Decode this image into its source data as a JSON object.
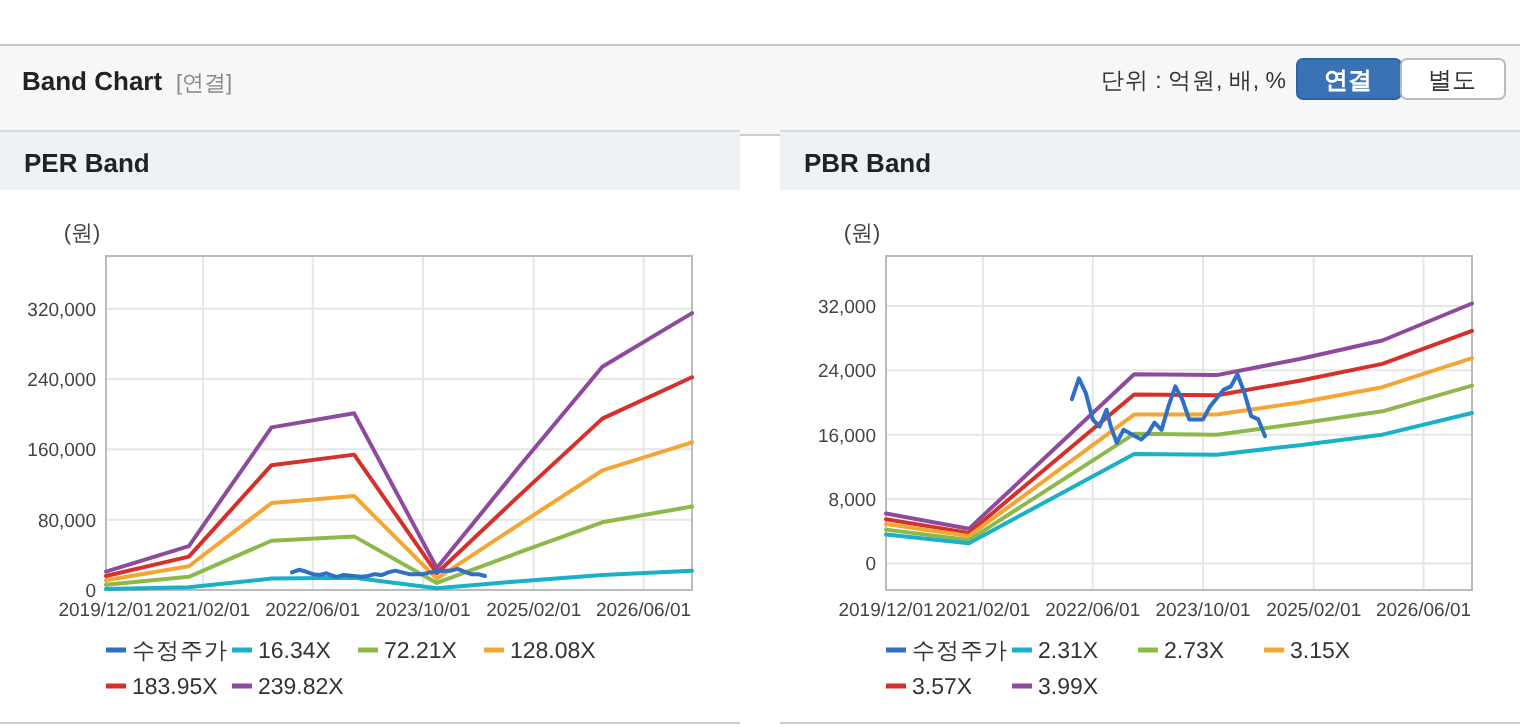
{
  "chart_data": [
    {
      "type": "other",
      "title": "Band Chart",
      "subtitle": "[연결]",
      "annotations": [
        "단위 : 억원, 배, %",
        "연결",
        "별도"
      ]
    },
    {
      "type": "line",
      "title": "PER Band",
      "ylabel": "(원)",
      "xlim": [
        "2019-12-01",
        "2027-01-01"
      ],
      "ylim": [
        0,
        380000
      ],
      "xticks": [
        {
          "value": "2019-12-01",
          "label": "2019/12/01"
        },
        {
          "value": "2021-02-01",
          "label": "2021/02/01"
        },
        {
          "value": "2022-06-01",
          "label": "2022/06/01"
        },
        {
          "value": "2023-10-01",
          "label": "2023/10/01"
        },
        {
          "value": "2025-02-01",
          "label": "2025/02/01"
        },
        {
          "value": "2026-06-01",
          "label": "2026/06/01"
        }
      ],
      "yticks": [
        {
          "value": 0,
          "label": "0"
        },
        {
          "value": 80000,
          "label": "80,000"
        },
        {
          "value": 160000,
          "label": "160,000"
        },
        {
          "value": 240000,
          "label": "240,000"
        },
        {
          "value": 320000,
          "label": "320,000"
        }
      ],
      "grid": true,
      "legend": "bottom",
      "series": [
        {
          "name": "수정주가",
          "color": "#2f6fc4",
          "x": [
            "2022-03-01",
            "2022-04-01",
            "2022-05-01",
            "2022-06-01",
            "2022-07-01",
            "2022-08-01",
            "2022-08-20",
            "2022-09-15",
            "2022-10-15",
            "2023-01-01",
            "2023-02-01",
            "2023-03-01",
            "2023-04-01",
            "2023-05-01",
            "2023-06-01",
            "2023-07-01",
            "2023-08-01",
            "2023-10-01",
            "2023-11-01",
            "2024-01-01",
            "2024-02-01",
            "2024-03-01",
            "2024-04-01",
            "2024-05-01",
            "2024-06-01",
            "2024-07-01"
          ],
          "values": [
            20000,
            23000,
            21000,
            18000,
            17000,
            19000,
            17000,
            15000,
            17000,
            15000,
            16000,
            18000,
            17000,
            20000,
            22000,
            20000,
            18000,
            18000,
            20000,
            22000,
            22000,
            24000,
            21000,
            18000,
            18000,
            16000
          ]
        },
        {
          "name": "16.34X",
          "color": "#1ab0c8",
          "x": [
            "2019-12-01",
            "2020-12-01",
            "2021-12-01",
            "2022-12-01",
            "2023-12-01",
            "2024-12-01",
            "2025-12-01",
            "2027-01-01"
          ],
          "values": [
            1000,
            3000,
            13000,
            14000,
            2000,
            10000,
            17000,
            22000
          ]
        },
        {
          "name": "72.21X",
          "color": "#8db84a",
          "x": [
            "2019-12-01",
            "2020-12-01",
            "2021-12-01",
            "2022-12-01",
            "2023-12-01",
            "2024-12-01",
            "2025-12-01",
            "2027-01-01"
          ],
          "values": [
            6000,
            15000,
            56000,
            61000,
            8000,
            43000,
            77000,
            95000
          ]
        },
        {
          "name": "128.08X",
          "color": "#f5a632",
          "x": [
            "2019-12-01",
            "2020-12-01",
            "2021-12-01",
            "2022-12-01",
            "2023-12-01",
            "2024-12-01",
            "2025-12-01",
            "2027-01-01"
          ],
          "values": [
            11000,
            27000,
            99000,
            107000,
            13000,
            75000,
            136000,
            168000
          ]
        },
        {
          "name": "183.95X",
          "color": "#d6302a",
          "x": [
            "2019-12-01",
            "2020-12-01",
            "2021-12-01",
            "2022-12-01",
            "2023-12-01",
            "2024-12-01",
            "2025-12-01",
            "2027-01-01"
          ],
          "values": [
            16000,
            38000,
            142000,
            154000,
            19000,
            108000,
            195000,
            242000
          ]
        },
        {
          "name": "239.82X",
          "color": "#8e4b9e",
          "x": [
            "2019-12-01",
            "2020-12-01",
            "2021-12-01",
            "2022-12-01",
            "2023-12-01",
            "2024-12-01",
            "2025-12-01",
            "2027-01-01"
          ],
          "values": [
            21000,
            50000,
            185000,
            201000,
            25000,
            141000,
            254000,
            315000
          ]
        }
      ]
    },
    {
      "type": "line",
      "title": "PBR Band",
      "ylabel": "(원)",
      "xlim": [
        "2019-12-01",
        "2027-01-01"
      ],
      "ylim": [
        -3300,
        38200
      ],
      "xticks": [
        {
          "value": "2019-12-01",
          "label": "2019/12/01"
        },
        {
          "value": "2021-02-01",
          "label": "2021/02/01"
        },
        {
          "value": "2022-06-01",
          "label": "2022/06/01"
        },
        {
          "value": "2023-10-01",
          "label": "2023/10/01"
        },
        {
          "value": "2025-02-01",
          "label": "2025/02/01"
        },
        {
          "value": "2026-06-01",
          "label": "2026/06/01"
        }
      ],
      "yticks": [
        {
          "value": 0,
          "label": "0"
        },
        {
          "value": 8000,
          "label": "8,000"
        },
        {
          "value": 16000,
          "label": "16,000"
        },
        {
          "value": 24000,
          "label": "24,000"
        },
        {
          "value": 32000,
          "label": "32,000"
        }
      ],
      "grid": true,
      "legend": "bottom",
      "series": [
        {
          "name": "수정주가",
          "color": "#2f6fc4",
          "x": [
            "2022-03-01",
            "2022-04-01",
            "2022-05-01",
            "2022-06-01",
            "2022-07-01",
            "2022-08-01",
            "2022-08-20",
            "2022-09-15",
            "2022-10-15",
            "2023-01-01",
            "2023-02-01",
            "2023-03-01",
            "2023-04-01",
            "2023-05-01",
            "2023-06-01",
            "2023-07-01",
            "2023-08-01",
            "2023-10-01",
            "2023-11-01",
            "2024-01-01",
            "2024-02-01",
            "2024-03-01",
            "2024-04-01",
            "2024-05-01",
            "2024-06-01",
            "2024-07-01"
          ],
          "values": [
            20400,
            23000,
            21200,
            17900,
            17000,
            19100,
            17000,
            15000,
            16600,
            15400,
            16200,
            17500,
            16600,
            19500,
            22000,
            20400,
            17900,
            17900,
            19500,
            21600,
            22000,
            23500,
            21200,
            18300,
            17900,
            15800
          ]
        },
        {
          "name": "2.31X",
          "color": "#1ab0c8",
          "x": [
            "2019-12-01",
            "2020-12-01",
            "2022-12-01",
            "2023-12-01",
            "2024-12-01",
            "2025-12-01",
            "2027-01-01"
          ],
          "values": [
            3600,
            2500,
            13600,
            13500,
            14700,
            16000,
            18700
          ]
        },
        {
          "name": "2.73X",
          "color": "#8db84a",
          "x": [
            "2019-12-01",
            "2020-12-01",
            "2022-12-01",
            "2023-12-01",
            "2024-12-01",
            "2025-12-01",
            "2027-01-01"
          ],
          "values": [
            4200,
            2900,
            16100,
            16000,
            17400,
            18900,
            22100
          ]
        },
        {
          "name": "3.15X",
          "color": "#f5a632",
          "x": [
            "2019-12-01",
            "2020-12-01",
            "2022-12-01",
            "2023-12-01",
            "2024-12-01",
            "2025-12-01",
            "2027-01-01"
          ],
          "values": [
            4900,
            3400,
            18500,
            18500,
            20000,
            21900,
            25500
          ]
        },
        {
          "name": "3.57X",
          "color": "#d6302a",
          "x": [
            "2019-12-01",
            "2020-12-01",
            "2022-12-01",
            "2023-12-01",
            "2024-12-01",
            "2025-12-01",
            "2027-01-01"
          ],
          "values": [
            5500,
            3800,
            21000,
            20900,
            22700,
            24800,
            28900
          ]
        },
        {
          "name": "3.99X",
          "color": "#8e4b9e",
          "x": [
            "2019-12-01",
            "2020-12-01",
            "2022-12-01",
            "2023-12-01",
            "2024-12-01",
            "2025-12-01",
            "2027-01-01"
          ],
          "values": [
            6200,
            4300,
            23500,
            23400,
            25400,
            27700,
            32300
          ]
        }
      ]
    }
  ]
}
